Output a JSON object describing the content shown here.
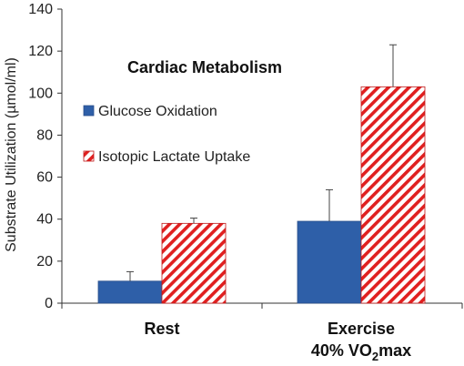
{
  "chart_data": {
    "type": "bar",
    "title": "Cardiac Metabolism",
    "ylabel": "Substrate Utilization (µmol/ml)",
    "xlabel": "",
    "ylim": [
      0,
      140
    ],
    "yticks": [
      "0",
      "20",
      "40",
      "60",
      "80",
      "100",
      "120",
      "140"
    ],
    "categories": [
      "Rest",
      "Exercise"
    ],
    "category_sublabel": {
      "prefix": "40% VO",
      "sub": "2",
      "suffix": "max"
    },
    "series": [
      {
        "name": "Glucose Oxidation",
        "values": [
          10.5,
          39
        ],
        "errors": [
          4.5,
          15
        ],
        "color": "#2e5fa8",
        "fill": "solid"
      },
      {
        "name": "Isotopic Lactate Uptake",
        "values": [
          38,
          103
        ],
        "errors": [
          2.5,
          20
        ],
        "color": "#e02020",
        "fill": "hatch"
      }
    ],
    "grid": false,
    "legend_position": "top-left"
  }
}
